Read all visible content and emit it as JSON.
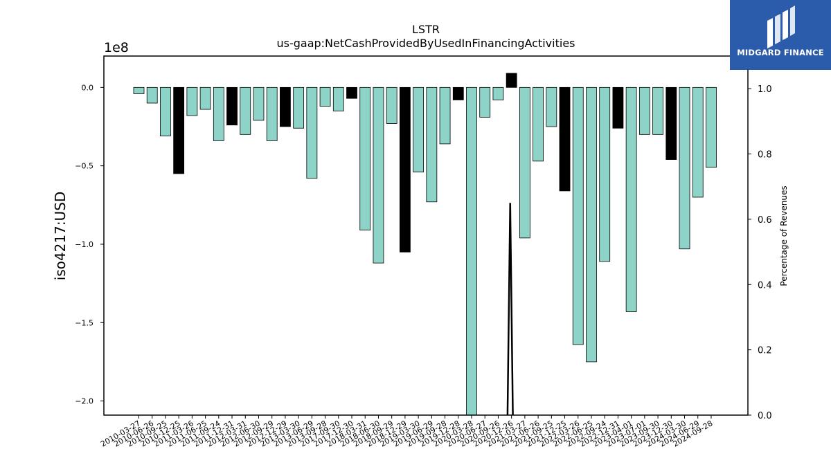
{
  "brand": {
    "name": "MIDGARD FINANCE",
    "logo_icon": "midgard-logo-icon",
    "bg_color": "#2b5cab"
  },
  "chart_data": {
    "type": "bar",
    "title": "LSTR",
    "subtitle": "us-gaap:NetCashProvidedByUsedInFinancingActivities",
    "ylabel": "iso4217:USD",
    "y_multiplier": "1e8",
    "y2label": "Percentage of Revenues",
    "ylim": [
      -2.09,
      0.2
    ],
    "y2lim": [
      0.0,
      1.1
    ],
    "yticks": [
      "0.0",
      "−0.5",
      "−1.0",
      "−1.5",
      "−2.0"
    ],
    "y2ticks": [
      "0.0",
      "0.2",
      "0.4",
      "0.6",
      "0.8",
      "1.0"
    ],
    "grid": false,
    "colors": {
      "bar": "#8dd3c7",
      "highlight": "#000000",
      "edge": "#000000"
    },
    "categories": [
      "2010-03-27",
      "2010-06-26",
      "2010-09-25",
      "2010-12-25",
      "2011-03-26",
      "2011-06-25",
      "2011-09-24",
      "2011-12-31",
      "2012-03-31",
      "2012-06-30",
      "2012-09-29",
      "2012-12-29",
      "2013-03-30",
      "2013-06-29",
      "2013-09-28",
      "2017-09-30",
      "2017-12-30",
      "2018-03-31",
      "2018-06-30",
      "2018-09-29",
      "2018-12-29",
      "2019-03-30",
      "2019-06-29",
      "2019-09-28",
      "2019-12-28",
      "2020-03-28",
      "2020-06-27",
      "2020-09-26",
      "2020-12-26",
      "2021-03-27",
      "2021-06-26",
      "2021-09-25",
      "2021-12-25",
      "2022-03-26",
      "2022-06-25",
      "2022-09-24",
      "2022-12-31",
      "2023-04-01",
      "2023-07-01",
      "2023-09-30",
      "2023-12-30",
      "2024-03-30",
      "2024-06-29",
      "2024-09-28"
    ],
    "values": [
      -0.04,
      -0.1,
      -0.31,
      -0.55,
      -0.18,
      -0.14,
      -0.34,
      -0.24,
      -0.3,
      -0.21,
      -0.34,
      -0.25,
      -0.26,
      -0.58,
      -0.12,
      -0.15,
      -0.07,
      -0.91,
      -1.12,
      -0.23,
      -1.05,
      -0.54,
      -0.73,
      -0.36,
      -0.08,
      -2.1,
      -0.19,
      -0.08,
      0.09,
      -0.96,
      -0.47,
      -0.25,
      -0.66,
      -1.64,
      -1.75,
      -1.11,
      -0.26,
      -1.43,
      -0.3,
      -0.3,
      -0.46,
      -1.03,
      -0.7,
      -0.51
    ],
    "highlighted": [
      3,
      7,
      11,
      16,
      20,
      24,
      28,
      32,
      36,
      40
    ],
    "line_series": {
      "x_index_from": 27.7,
      "x_index_to": 28.1,
      "values": [
        0.0,
        0.65,
        0.0
      ]
    }
  }
}
